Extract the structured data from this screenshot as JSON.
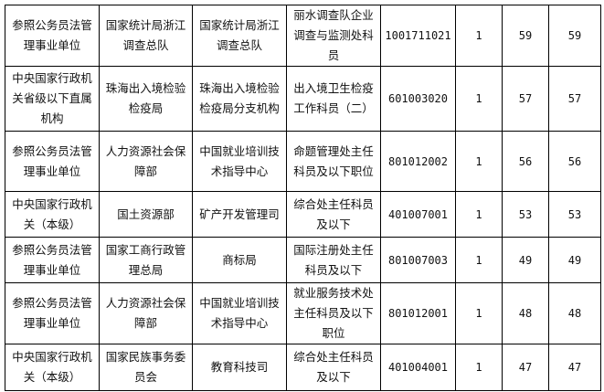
{
  "rows": [
    {
      "type": "参照公务员法管理事业单位",
      "dept": "国家统计局浙江调查总队",
      "unit": "国家统计局浙江调查总队",
      "position": "丽水调查队企业调查与监测处科员",
      "code": "1001711021",
      "quota": "1",
      "applicants": "59",
      "approved": "59"
    },
    {
      "type": "中央国家行政机关省级以下直属机构",
      "dept": "珠海出入境检验检疫局",
      "unit": "珠海出入境检验检疫局分支机构",
      "position": "出入境卫生检疫工作科员（二）",
      "code": "601003020",
      "quota": "1",
      "applicants": "57",
      "approved": "57"
    },
    {
      "type": "参照公务员法管理事业单位",
      "dept": "人力资源社会保障部",
      "unit": "中国就业培训技术指导中心",
      "position": "命题管理处主任科员及以下职位",
      "code": "801012002",
      "quota": "1",
      "applicants": "56",
      "approved": "56"
    },
    {
      "type": "中央国家行政机关（本级）",
      "dept": "国土资源部",
      "unit": "矿产开发管理司",
      "position": "综合处主任科员及以下",
      "code": "401007001",
      "quota": "1",
      "applicants": "53",
      "approved": "53"
    },
    {
      "type": "参照公务员法管理事业单位",
      "dept": "国家工商行政管理总局",
      "unit": "商标局",
      "position": "国际注册处主任科员及以下",
      "code": "801007003",
      "quota": "1",
      "applicants": "49",
      "approved": "49"
    },
    {
      "type": "参照公务员法管理事业单位",
      "dept": "人力资源社会保障部",
      "unit": "中国就业培训技术指导中心",
      "position": "就业服务技术处主任科员及以下职位",
      "code": "801012001",
      "quota": "1",
      "applicants": "48",
      "approved": "48"
    },
    {
      "type": "中央国家行政机关（本级）",
      "dept": "国家民族事务委员会",
      "unit": "教育科技司",
      "position": "综合处主任科员及以下",
      "code": "401004001",
      "quota": "1",
      "applicants": "47",
      "approved": "47"
    }
  ]
}
